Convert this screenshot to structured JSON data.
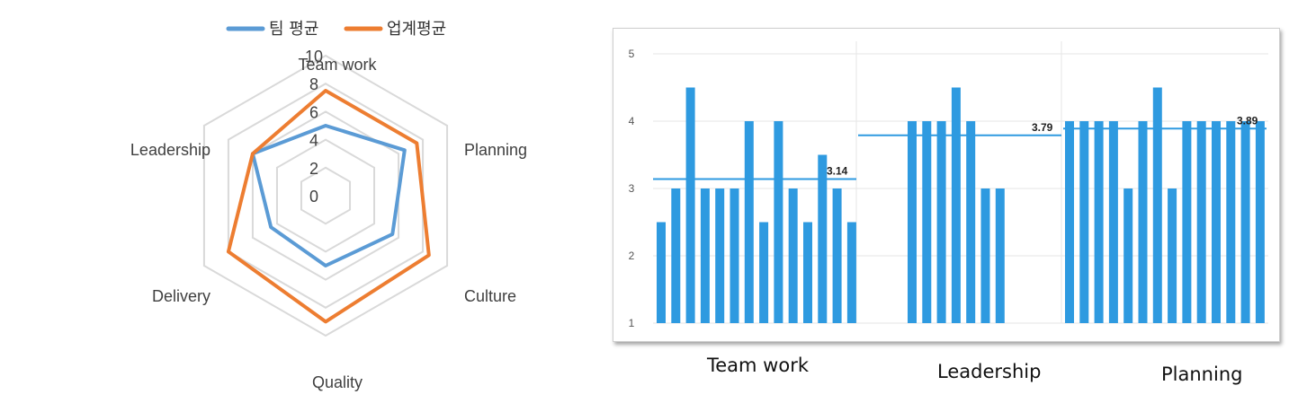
{
  "chart_data": [
    {
      "type": "radar",
      "axes": [
        "Team work",
        "Planning",
        "Culture",
        "Quality",
        "Delivery",
        "Leadership"
      ],
      "rlim": [
        0,
        10
      ],
      "ticks": [
        "0",
        "2",
        "4",
        "6",
        "8",
        "10"
      ],
      "series": [
        {
          "name": "팀 평균",
          "values": [
            5,
            6.5,
            5.5,
            5,
            4.5,
            6
          ],
          "color": "#5b9bd5"
        },
        {
          "name": "업계평균",
          "values": [
            7.5,
            7.5,
            8.5,
            9,
            8,
            6
          ]
        }
      ],
      "legend_position": "top",
      "colors": {
        "team": "#5b9bd5",
        "industry": "#ed7d31",
        "grid": "#d9d9d9"
      }
    },
    {
      "type": "bar",
      "ylim": [
        1,
        5
      ],
      "yticks": [
        "1",
        "2",
        "3",
        "4",
        "5"
      ],
      "grid": true,
      "colors": {
        "bar": "#2e9ae0",
        "line": "#2e9ae0"
      },
      "groups": [
        {
          "label": "Team work",
          "values": [
            2.5,
            3,
            4.5,
            3,
            3,
            3,
            4,
            2.5,
            4,
            3,
            2.5,
            3.5,
            3,
            2.5
          ],
          "mean": 3.14,
          "mean_label": "3.14"
        },
        {
          "label": "Leadership",
          "values": [
            4,
            4,
            4,
            4.5,
            4,
            3,
            3
          ],
          "mean": 3.79,
          "mean_label": "3.79"
        },
        {
          "label": "Planning",
          "values": [
            4,
            4,
            4,
            4,
            3,
            4,
            4.5,
            3,
            4,
            4,
            4,
            4,
            4,
            4
          ],
          "mean": 3.89,
          "mean_label": "3.89"
        }
      ]
    }
  ]
}
